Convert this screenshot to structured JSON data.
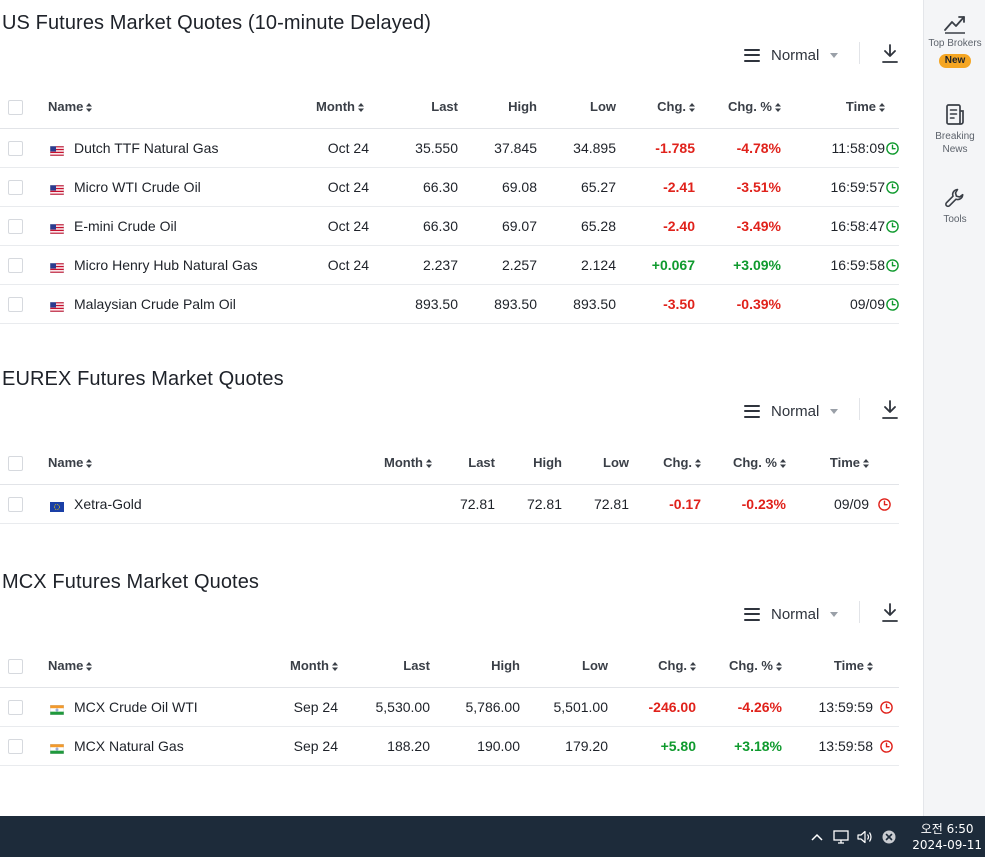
{
  "colors": {
    "negative": "#e0221b",
    "positive": "#0f9a2e",
    "badge": "#f5a623",
    "taskbar": "#1d2b3a"
  },
  "toolbar": {
    "view_label": "Normal"
  },
  "headers": {
    "name": "Name",
    "month": "Month",
    "last": "Last",
    "high": "High",
    "low": "Low",
    "chg": "Chg.",
    "chg_pct": "Chg. %",
    "time": "Time"
  },
  "us_section": {
    "title": "US Futures Market Quotes (10-minute Delayed)",
    "rows": [
      {
        "flag": "us-flag",
        "name": "Dutch TTF Natural Gas",
        "month": "Oct 24",
        "last": "35.550",
        "high": "37.845",
        "low": "34.895",
        "chg": "-1.785",
        "chg_pct": "-4.78%",
        "time": "11:58:09",
        "direction": "neg",
        "status": "market-open-clock-icon"
      },
      {
        "flag": "us-flag",
        "name": "Micro WTI Crude Oil",
        "month": "Oct 24",
        "last": "66.30",
        "high": "69.08",
        "low": "65.27",
        "chg": "-2.41",
        "chg_pct": "-3.51%",
        "time": "16:59:57",
        "direction": "neg",
        "status": "market-open-clock-icon"
      },
      {
        "flag": "us-flag",
        "name": "E-mini Crude Oil",
        "month": "Oct 24",
        "last": "66.30",
        "high": "69.07",
        "low": "65.28",
        "chg": "-2.40",
        "chg_pct": "-3.49%",
        "time": "16:58:47",
        "direction": "neg",
        "status": "market-open-clock-icon"
      },
      {
        "flag": "us-flag",
        "name": "Micro Henry Hub Natural Gas",
        "month": "Oct 24",
        "last": "2.237",
        "high": "2.257",
        "low": "2.124",
        "chg": "+0.067",
        "chg_pct": "+3.09%",
        "time": "16:59:58",
        "direction": "pos",
        "status": "market-open-clock-icon"
      },
      {
        "flag": "us-flag",
        "name": "Malaysian Crude Palm Oil",
        "month": "",
        "last": "893.50",
        "high": "893.50",
        "low": "893.50",
        "chg": "-3.50",
        "chg_pct": "-0.39%",
        "time": "09/09",
        "direction": "neg",
        "status": "market-open-clock-icon"
      }
    ]
  },
  "eurex_section": {
    "title": "EUREX Futures Market Quotes",
    "rows": [
      {
        "flag": "eu-flag",
        "name": "Xetra-Gold",
        "month": "",
        "last": "72.81",
        "high": "72.81",
        "low": "72.81",
        "chg": "-0.17",
        "chg_pct": "-0.23%",
        "time": "09/09",
        "direction": "neg",
        "status": "market-closed-clock-icon"
      }
    ]
  },
  "mcx_section": {
    "title": "MCX Futures Market Quotes",
    "rows": [
      {
        "flag": "in-flag",
        "name": "MCX Crude Oil WTI",
        "month": "Sep 24",
        "last": "5,530.00",
        "high": "5,786.00",
        "low": "5,501.00",
        "chg": "-246.00",
        "chg_pct": "-4.26%",
        "time": "13:59:59",
        "direction": "neg",
        "status": "market-closed-clock-icon"
      },
      {
        "flag": "in-flag",
        "name": "MCX Natural Gas",
        "month": "Sep 24",
        "last": "188.20",
        "high": "190.00",
        "low": "179.20",
        "chg": "+5.80",
        "chg_pct": "+3.18%",
        "time": "13:59:58",
        "direction": "pos",
        "status": "market-closed-clock-icon"
      }
    ]
  },
  "sidebar": {
    "top_brokers": {
      "label": "Top Brokers",
      "badge": "New",
      "icon": "trend-up-icon"
    },
    "breaking_news": {
      "label_line1": "Breaking",
      "label_line2": "News",
      "icon": "news-icon"
    },
    "tools": {
      "label": "Tools",
      "icon": "wrench-icon"
    }
  },
  "taskbar": {
    "time": "오전 6:50",
    "date": "2024-09-11"
  }
}
